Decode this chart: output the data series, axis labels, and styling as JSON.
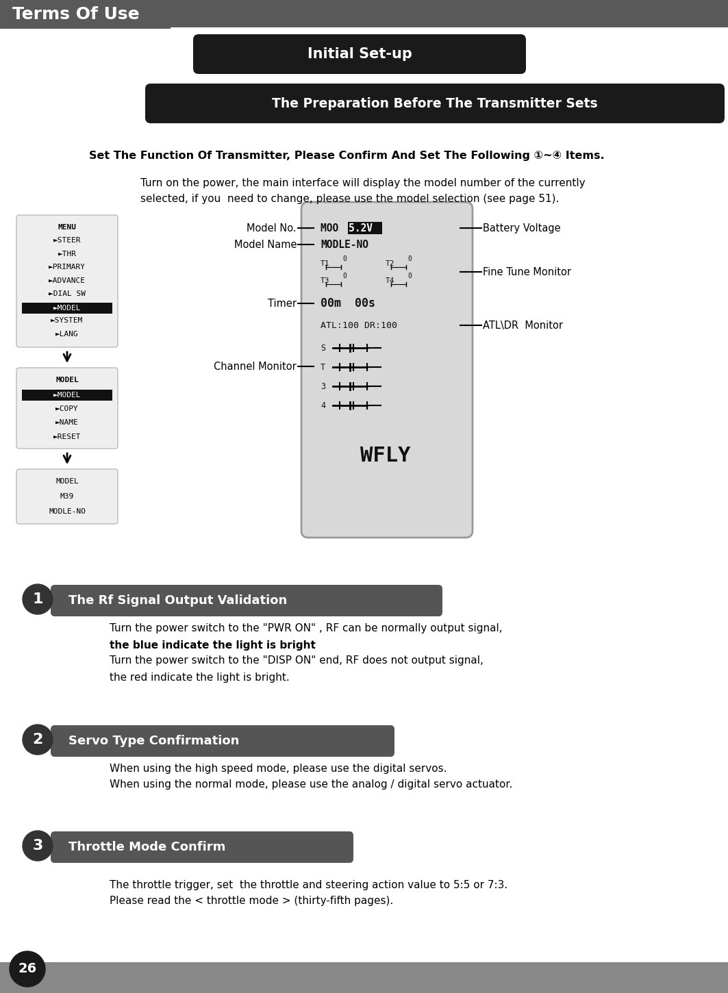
{
  "bg_color": "#ffffff",
  "header_bg": "#595959",
  "header_text": "Terms Of Use",
  "header_text_color": "#ffffff",
  "initial_setup_bg": "#1a1a1a",
  "initial_setup_text": "Initial Set-up",
  "initial_setup_text_color": "#ffffff",
  "prep_bg": "#1a1a1a",
  "prep_text": "The Preparation Before The Transmitter Sets",
  "prep_text_color": "#ffffff",
  "bold_instruction": "Set The Function Of Transmitter, Please Confirm And Set The Following ①~④ Items.",
  "body_text_color": "#000000",
  "intro_text_1": "Turn on the power, the main interface will display the model number of the currently",
  "intro_text_2": "selected, if you  need to change, please use the model selection (see page 51).",
  "menu_items": [
    "MENU",
    "►STEER",
    "►THR",
    "►PRIMARY",
    "►ADVANCE",
    "►DIAL SW",
    "►MODEL",
    "►SYSTEM",
    "►LANG"
  ],
  "menu_selected": 6,
  "model_menu_items": [
    "MODEL",
    "►MODEL",
    "►COPY",
    "►NAME",
    "►RESET"
  ],
  "model_menu_selected": 1,
  "bottom_menu_lines": [
    "MODEL",
    "M39",
    "MODLE-NO"
  ],
  "label_model_no": "Model No.",
  "label_model_name": "Model Name",
  "label_timer": "Timer",
  "label_channel": "Channel Monitor",
  "label_battery": "Battery Voltage",
  "label_fine_tune": "Fine Tune Monitor",
  "label_atl": "ATL\\DR  Monitor",
  "section1_circle": "1",
  "section1_bg": "#555555",
  "section1_text": "The Rf Signal Output Validation",
  "section1_body1": "Turn the power switch to the \"PWR ON\" , RF can be normally output signal,",
  "section1_body2": "the blue indicate the light is bright",
  "section1_body3": "Turn the power switch to the \"DISP ON\" end, RF does not output signal,",
  "section1_body4": "the red indicate the light is bright.",
  "section2_circle": "2",
  "section2_bg": "#555555",
  "section2_text": "Servo Type Confirmation",
  "section2_body1": "When using the high speed mode, please use the digital servos.",
  "section2_body2": "When using the normal mode, please use the analog / digital servo actuator.",
  "section3_circle": "3",
  "section3_bg": "#555555",
  "section3_text": "Throttle Mode Confirm",
  "section3_body1": "The throttle trigger, set  the throttle and steering action value to 5:5 or 7:3.",
  "section3_body2": "Please read the < throttle mode > (thirty-fifth pages).",
  "page_number": "26",
  "page_circle_bg": "#1a1a1a",
  "page_number_color": "#ffffff",
  "bottom_bar_color": "#888888",
  "lcd_bg": "#d8d8d8",
  "lcd_edge": "#999999",
  "lcd_text": "#111111"
}
